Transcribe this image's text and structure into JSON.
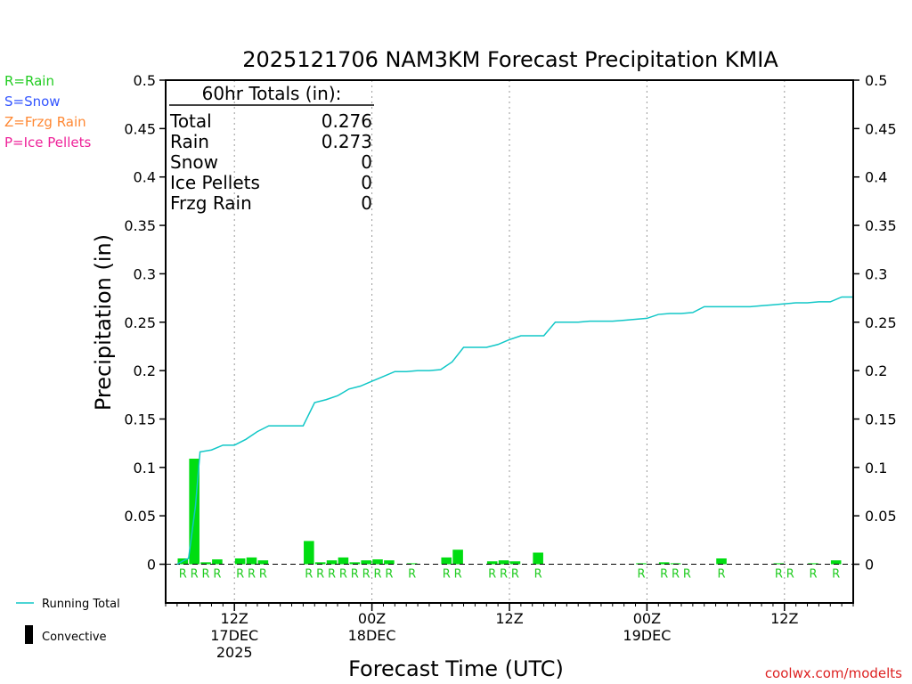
{
  "chart_data": {
    "type": "bar+line",
    "title": "2025121706 NAM3KM Forecast Precipitation KMIA",
    "ylabel": "Precipitation  (in)",
    "xlabel": "Forecast Time (UTC)",
    "ylim": [
      -0.04,
      0.5
    ],
    "xlim": [
      6,
      66
    ],
    "yticks": [
      "0",
      "0.05",
      "0.1",
      "0.15",
      "0.2",
      "0.25",
      "0.3",
      "0.35",
      "0.4",
      "0.45",
      "0.5"
    ],
    "ytick_values": [
      0,
      0.05,
      0.1,
      0.15,
      0.2,
      0.25,
      0.3,
      0.35,
      0.4,
      0.45,
      0.5
    ],
    "xticks": [
      {
        "hour": 12,
        "line1": "12Z",
        "line2": "17DEC",
        "line3": "2025"
      },
      {
        "hour": 24,
        "line1": "00Z",
        "line2": "18DEC",
        "line3": ""
      },
      {
        "hour": 36,
        "line1": "12Z",
        "line2": "",
        "line3": ""
      },
      {
        "hour": 48,
        "line1": "00Z",
        "line2": "19DEC",
        "line3": ""
      },
      {
        "hour": 60,
        "line1": "12Z",
        "line2": "",
        "line3": ""
      }
    ],
    "bars": {
      "name": "Hourly Precipitation",
      "hours": [
        8,
        9,
        10,
        11,
        12,
        13,
        14,
        15,
        16,
        17,
        18,
        19,
        20,
        21,
        22,
        23,
        24,
        25,
        26,
        27,
        28,
        29,
        30,
        31,
        32,
        33,
        34,
        35,
        36,
        37,
        38,
        39,
        40,
        41,
        42,
        43,
        44,
        45,
        46,
        47,
        48,
        49,
        50,
        51,
        52,
        53,
        54,
        55,
        56,
        57,
        58,
        59,
        60,
        61,
        62,
        63,
        64,
        65
      ],
      "values": [
        0.006,
        0.109,
        0.002,
        0.005,
        0,
        0.006,
        0.007,
        0.004,
        0,
        0,
        0,
        0.024,
        0.002,
        0.004,
        0.007,
        0.002,
        0.004,
        0.005,
        0.004,
        0,
        0.001,
        0,
        0,
        0.007,
        0.015,
        0,
        0,
        0.003,
        0.004,
        0.003,
        0,
        0.012,
        0,
        0,
        0,
        0,
        0,
        0,
        0,
        0,
        0.001,
        0,
        0.002,
        0.001,
        0,
        0,
        0,
        0.006,
        0,
        0,
        0,
        0,
        0.001,
        0,
        0,
        0.001,
        0,
        0.004
      ]
    },
    "precip_types": [
      "R",
      "R",
      "R",
      "R",
      "",
      "R",
      "R",
      "R",
      "",
      "",
      "",
      "R",
      "R",
      "R",
      "R",
      "R",
      "R",
      "R",
      "R",
      "",
      "R",
      "",
      "",
      "R",
      "R",
      "",
      "",
      "R",
      "R",
      "R",
      "",
      "R",
      "",
      "",
      "",
      "",
      "",
      "",
      "",
      "",
      "R",
      "",
      "R",
      "R",
      "R",
      "",
      "",
      "R",
      "",
      "",
      "",
      "",
      "R",
      "R",
      "",
      "R",
      "",
      "R"
    ],
    "running_total": {
      "name": "Running Total",
      "hours": [
        7,
        7.6,
        8,
        8.6,
        9,
        10,
        11,
        12,
        13,
        14,
        15,
        16,
        17,
        18,
        19,
        20,
        21,
        22,
        23,
        24,
        25,
        26,
        27,
        28,
        29,
        30,
        31,
        32,
        33,
        34,
        35,
        36,
        37,
        38,
        39,
        40,
        41,
        42,
        43,
        44,
        45,
        46,
        47,
        48,
        49,
        50,
        51,
        52,
        53,
        54,
        55,
        56,
        57,
        58,
        59,
        60,
        61,
        62,
        63,
        64,
        65,
        66
      ],
      "values": [
        0,
        0.004,
        0.006,
        0.06,
        0.116,
        0.118,
        0.123,
        0.123,
        0.129,
        0.137,
        0.143,
        0.143,
        0.143,
        0.143,
        0.167,
        0.17,
        0.174,
        0.181,
        0.184,
        0.189,
        0.194,
        0.199,
        0.199,
        0.2,
        0.2,
        0.201,
        0.209,
        0.224,
        0.224,
        0.224,
        0.227,
        0.232,
        0.236,
        0.236,
        0.236,
        0.25,
        0.25,
        0.25,
        0.251,
        0.251,
        0.251,
        0.252,
        0.253,
        0.254,
        0.258,
        0.259,
        0.259,
        0.26,
        0.266,
        0.266,
        0.266,
        0.266,
        0.266,
        0.267,
        0.268,
        0.269,
        0.27,
        0.27,
        0.271,
        0.271,
        0.276,
        0.276
      ]
    },
    "totals_title": "60hr Totals (in):",
    "totals": [
      {
        "label": "Total",
        "value": "0.276"
      },
      {
        "label": "Rain",
        "value": "0.273"
      },
      {
        "label": "Snow",
        "value": "0"
      },
      {
        "label": "Ice Pellets",
        "value": "0"
      },
      {
        "label": "Frzg Rain",
        "value": "0"
      }
    ],
    "type_legend": [
      {
        "text": "R=Rain",
        "color": "#22cc22"
      },
      {
        "text": "S=Snow",
        "color": "#3355ff"
      },
      {
        "text": "Z=Frzg Rain",
        "color": "#ff8833"
      },
      {
        "text": "P=Ice Pellets",
        "color": "#ee2299"
      }
    ],
    "series_legend": [
      {
        "text": "Running Total",
        "color": "#11c7c7"
      },
      {
        "text": "Convective",
        "color": "#000000"
      }
    ],
    "bar_color": "#00dd11",
    "line_color": "#11c7c7",
    "credit": "coolwx.com/modelts",
    "credit_color": "#dd2222"
  }
}
